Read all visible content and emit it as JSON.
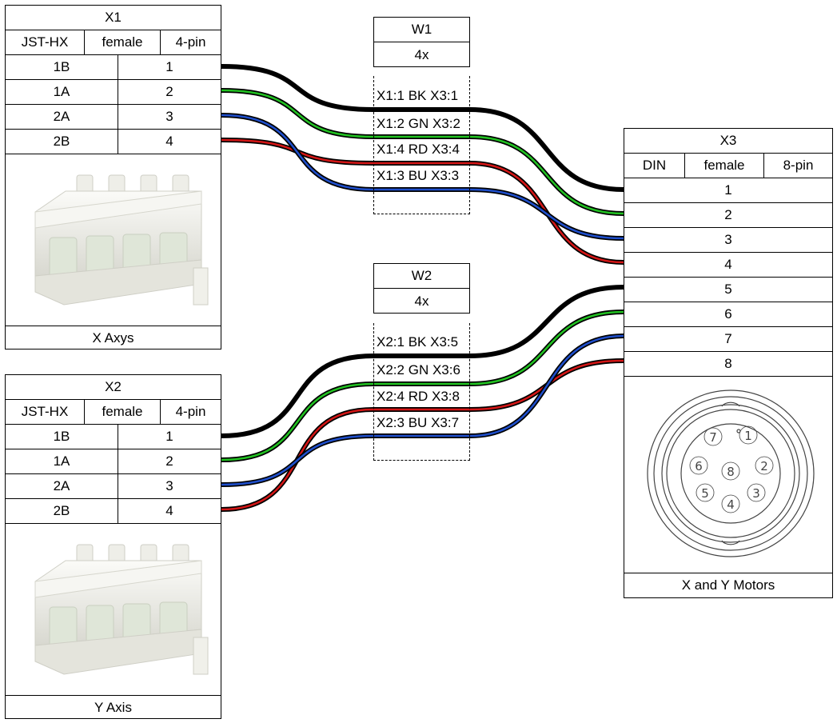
{
  "connectors": {
    "x1": {
      "name": "X1",
      "type": "JST-HX",
      "gender": "female",
      "pins": "4-pin",
      "rows": [
        [
          "1B",
          "1"
        ],
        [
          "1A",
          "2"
        ],
        [
          "2A",
          "3"
        ],
        [
          "2B",
          "4"
        ]
      ],
      "caption": "X Axys",
      "image": "jst-hx-connector-photo"
    },
    "x2": {
      "name": "X2",
      "type": "JST-HX",
      "gender": "female",
      "pins": "4-pin",
      "rows": [
        [
          "1B",
          "1"
        ],
        [
          "1A",
          "2"
        ],
        [
          "2A",
          "3"
        ],
        [
          "2B",
          "4"
        ]
      ],
      "caption": "Y Axis",
      "image": "jst-hx-connector-photo"
    },
    "x3": {
      "name": "X3",
      "type": "DIN",
      "gender": "female",
      "pins": "8-pin",
      "rows": [
        "1",
        "2",
        "3",
        "4",
        "5",
        "6",
        "7",
        "8"
      ],
      "caption": "X and Y Motors",
      "image": "din-8-pin-drawing",
      "din_pins": [
        "1",
        "2",
        "3",
        "4",
        "5",
        "6",
        "7",
        "8"
      ]
    }
  },
  "cables": {
    "w1": {
      "name": "W1",
      "count": "4x",
      "wires": [
        {
          "from": "X1:1",
          "color": "BK",
          "to": "X3:1",
          "hex": "#000000"
        },
        {
          "from": "X1:2",
          "color": "GN",
          "to": "X3:2",
          "hex": "#22c322"
        },
        {
          "from": "X1:4",
          "color": "RD",
          "to": "X3:4",
          "hex": "#d41616"
        },
        {
          "from": "X1:3",
          "color": "BU",
          "to": "X3:3",
          "hex": "#1f4fcc"
        }
      ]
    },
    "w2": {
      "name": "W2",
      "count": "4x",
      "wires": [
        {
          "from": "X2:1",
          "color": "BK",
          "to": "X3:5",
          "hex": "#000000"
        },
        {
          "from": "X2:2",
          "color": "GN",
          "to": "X3:6",
          "hex": "#22c322"
        },
        {
          "from": "X2:4",
          "color": "RD",
          "to": "X3:8",
          "hex": "#d41616"
        },
        {
          "from": "X2:3",
          "color": "BU",
          "to": "X3:7",
          "hex": "#1f4fcc"
        }
      ]
    }
  }
}
